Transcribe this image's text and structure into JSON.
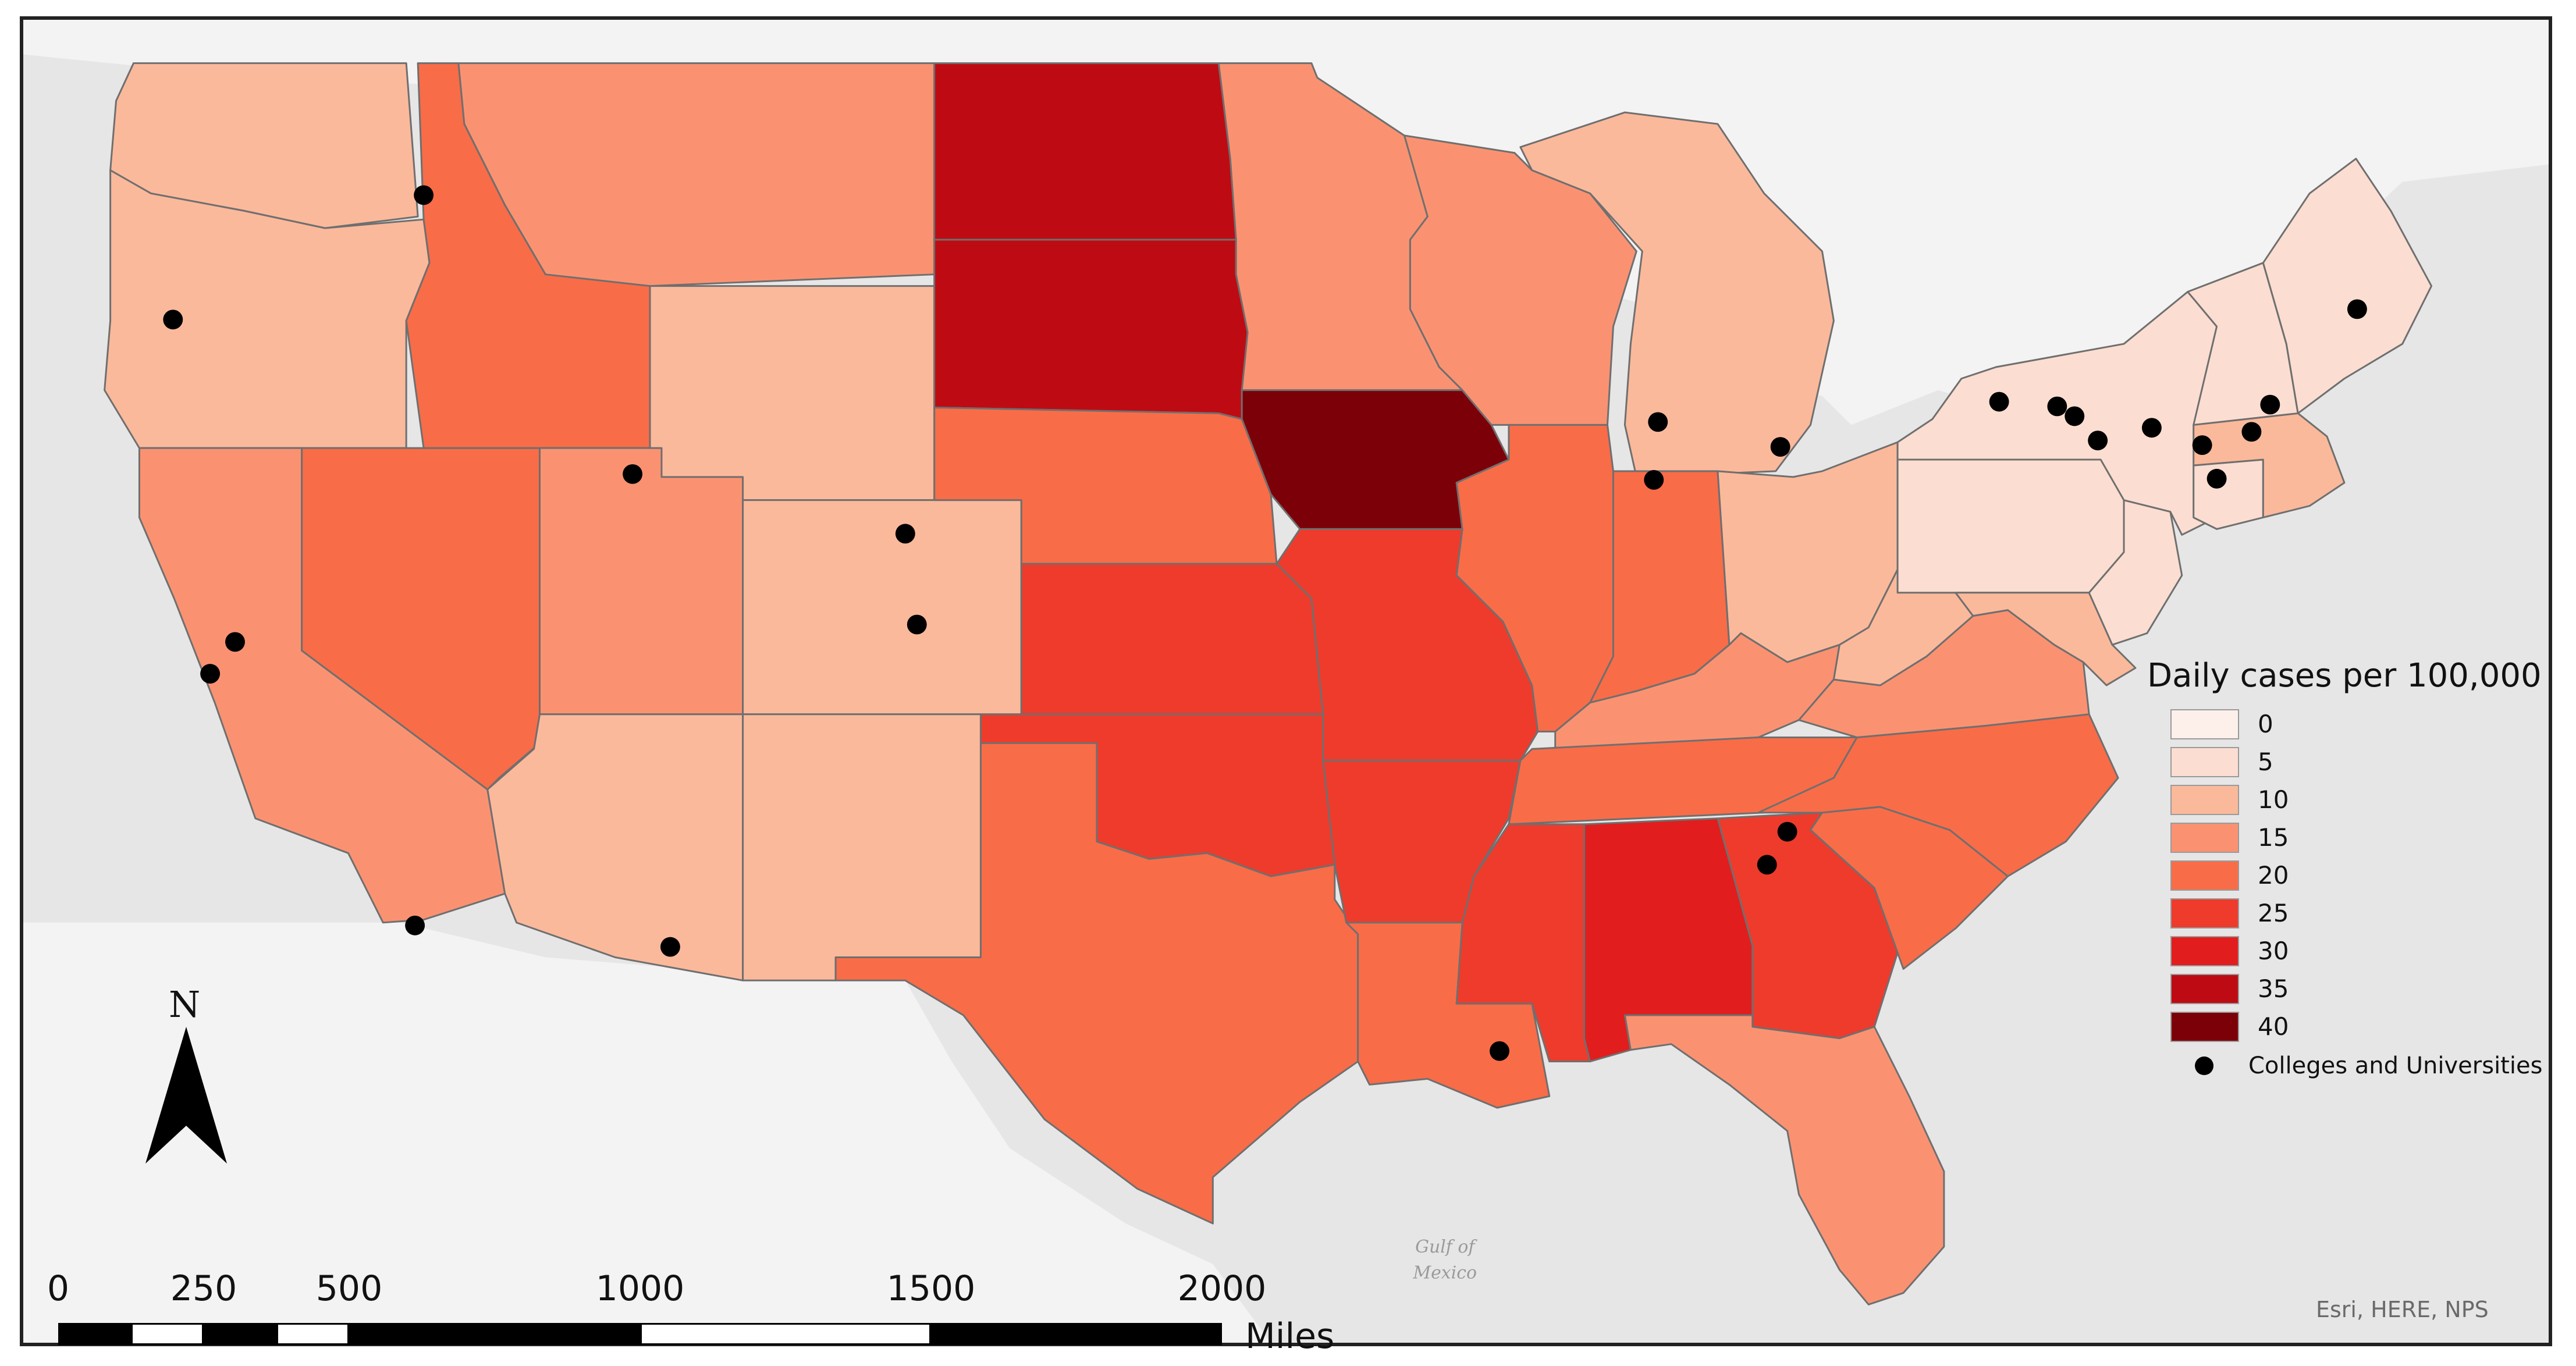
{
  "map": {
    "legend_title": "Daily cases per 100,000",
    "legend_classes": [
      {
        "label": "0",
        "color": "#fdf0ea"
      },
      {
        "label": "5",
        "color": "#fbded1"
      },
      {
        "label": "10",
        "color": "#fbb99b"
      },
      {
        "label": "15",
        "color": "#fa9272"
      },
      {
        "label": "20",
        "color": "#f96c48"
      },
      {
        "label": "25",
        "color": "#ef3b2c"
      },
      {
        "label": "30",
        "color": "#e21d1d"
      },
      {
        "label": "35",
        "color": "#be0b13"
      },
      {
        "label": "40",
        "color": "#7c0008"
      }
    ],
    "point_legend": "Colleges and Universities",
    "attribution": "Esri, HERE, NPS",
    "north_label": "N",
    "water_label_line1": "Gulf of",
    "water_label_line2": "Mexico",
    "scale": {
      "ticks": [
        "0",
        "250",
        "500",
        "1000",
        "1500",
        "2000"
      ],
      "units": "Miles"
    },
    "state_classes": {
      "washington": "10",
      "oregon": "10",
      "california": "15",
      "idaho": "20",
      "nevada": "20",
      "montana": "15",
      "wyoming": "10",
      "utah": "15",
      "arizona": "10",
      "colorado": "10",
      "new_mexico": "10",
      "north_dakota": "35",
      "south_dakota": "35",
      "nebraska": "20",
      "kansas": "25",
      "oklahoma": "25",
      "texas": "20",
      "minnesota": "15",
      "iowa": "40",
      "missouri": "25",
      "arkansas": "25",
      "louisiana": "20",
      "wisconsin": "15",
      "illinois": "20",
      "michigan": "10",
      "indiana": "20",
      "ohio": "10",
      "kentucky": "15",
      "tennessee": "20",
      "mississippi": "25",
      "alabama": "30",
      "georgia": "25",
      "florida": "15",
      "south_carolina": "20",
      "north_carolina": "20",
      "virginia": "15",
      "west_virginia": "10",
      "pennsylvania": "5",
      "new_york": "5",
      "new_jersey": "5",
      "delaware_maryland": "10",
      "connecticut": "5",
      "massachusetts": "10",
      "vermont_nh": "5",
      "maine": "5"
    }
  }
}
